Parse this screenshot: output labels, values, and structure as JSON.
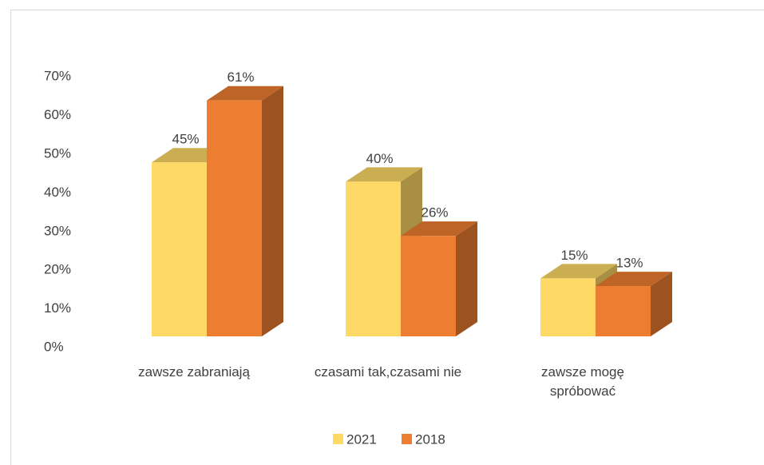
{
  "chart_data": {
    "type": "bar3d",
    "categories": [
      "zawsze zabraniają",
      "czasami tak,czasami nie",
      "zawsze mogę spróbować"
    ],
    "series": [
      {
        "name": "2021",
        "color": "#FFD966",
        "values": [
          45,
          40,
          15
        ],
        "value_labels": [
          "45%",
          "40%",
          "15%"
        ]
      },
      {
        "name": "2018",
        "color": "#ED7D31",
        "values": [
          61,
          26,
          13
        ],
        "value_labels": [
          "61%",
          "26%",
          "13%"
        ]
      }
    ],
    "ylim": [
      0,
      70
    ],
    "yticks": [
      {
        "value": 0,
        "label": "0%"
      },
      {
        "value": 10,
        "label": "10%"
      },
      {
        "value": 20,
        "label": "20%"
      },
      {
        "value": 30,
        "label": "30%"
      },
      {
        "value": 40,
        "label": "40%"
      },
      {
        "value": 50,
        "label": "50%"
      },
      {
        "value": 60,
        "label": "60%"
      },
      {
        "value": 70,
        "label": "70%"
      }
    ],
    "legend": "bottom"
  }
}
